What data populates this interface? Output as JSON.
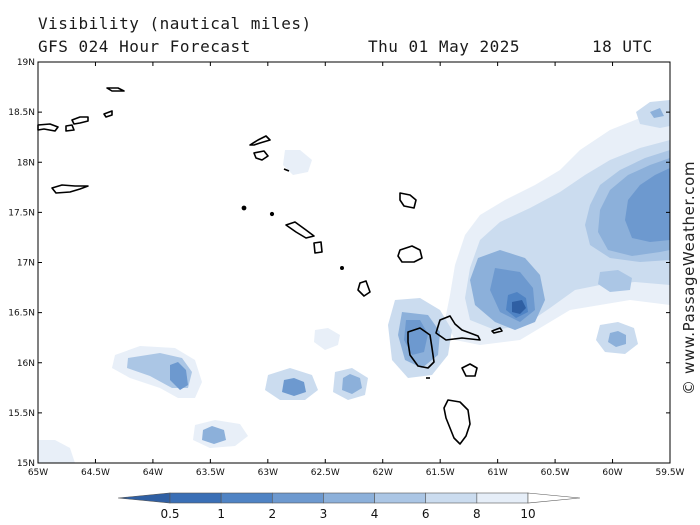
{
  "header": {
    "title": "Visibility (nautical miles)",
    "model": "GFS 024 Hour Forecast",
    "date": "Thu 01 May 2025",
    "time": "18 UTC"
  },
  "map": {
    "lat_labels": [
      "19N",
      "18.5N",
      "18N",
      "17.5N",
      "17N",
      "16.5N",
      "16N",
      "15.5N",
      "15N"
    ],
    "lon_labels": [
      "65W",
      "64.5W",
      "64W",
      "63.5W",
      "63W",
      "62.5W",
      "62W",
      "61.5W",
      "61W",
      "60.5W",
      "60W",
      "59.5W"
    ],
    "credit": "© www.PassageWeather.com"
  },
  "colorbar": {
    "labels": [
      "0.5",
      "1",
      "2",
      "3",
      "4",
      "6",
      "8",
      "10"
    ],
    "colors": [
      "#3a6fb6",
      "#4f83c4",
      "#6d99cf",
      "#8cb0da",
      "#abc6e5",
      "#cbdcef",
      "#e6eef8",
      "#ffffff"
    ]
  },
  "colors": {
    "frame": "#000000",
    "coastline": "#000000"
  }
}
